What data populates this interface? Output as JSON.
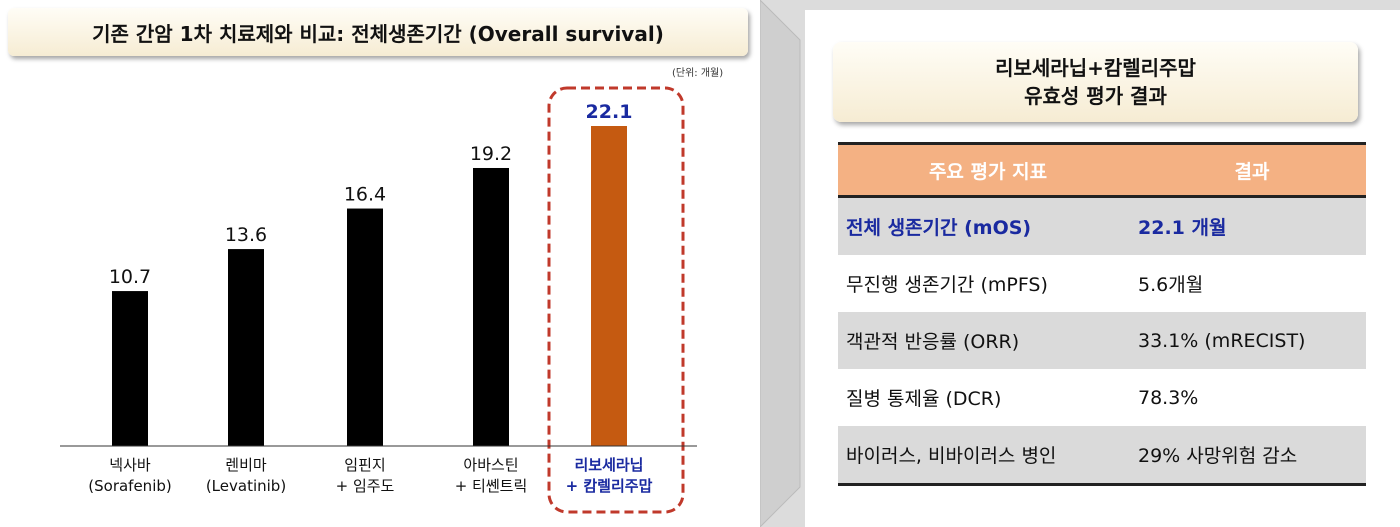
{
  "left": {
    "title": "기존 간암 1차 치료제와 비교: 전체생존기간 (Overall survival)",
    "unit": "(단위: 개월)"
  },
  "chart_data": {
    "type": "bar",
    "title": "기존 간암 1차 치료제와 비교: 전체생존기간 (Overall survival)",
    "unit": "(단위: 개월)",
    "categories": [
      [
        "넥사바",
        "(Sorafenib)"
      ],
      [
        "렌비마",
        "(Levatinib)"
      ],
      [
        "임핀지",
        "+ 임주도"
      ],
      [
        "아바스틴",
        "+ 티쎈트릭"
      ],
      [
        "리보세라닙",
        "+ 캄렐리주맙"
      ]
    ],
    "values": [
      10.7,
      13.6,
      16.4,
      19.2,
      22.1
    ],
    "value_labels": [
      "10.7",
      "13.6",
      "16.4",
      "19.2",
      "22.1"
    ],
    "highlight_index": 4,
    "ylim": [
      0,
      24
    ],
    "colors": {
      "default": "#000000",
      "highlight": "#c55a11",
      "highlight_text": "#1a2aa0",
      "highlight_border": "#c0392b"
    }
  },
  "right": {
    "title_line1": "리보세라닙+캄렐리주맙",
    "title_line2": "유효성 평가 결과",
    "table": {
      "headers": [
        "주요 평가 지표",
        "결과"
      ],
      "rows": [
        [
          "전체 생존기간 (mOS)",
          "22.1 개월"
        ],
        [
          "무진행 생존기간 (mPFS)",
          "5.6개월"
        ],
        [
          "객관적 반응률 (ORR)",
          "33.1% (mRECIST)"
        ],
        [
          "질병 통제율 (DCR)",
          "78.3%"
        ],
        [
          "바이러스, 비바이러스 병인",
          "29% 사망위험 감소"
        ]
      ],
      "highlight_row": 0
    }
  }
}
